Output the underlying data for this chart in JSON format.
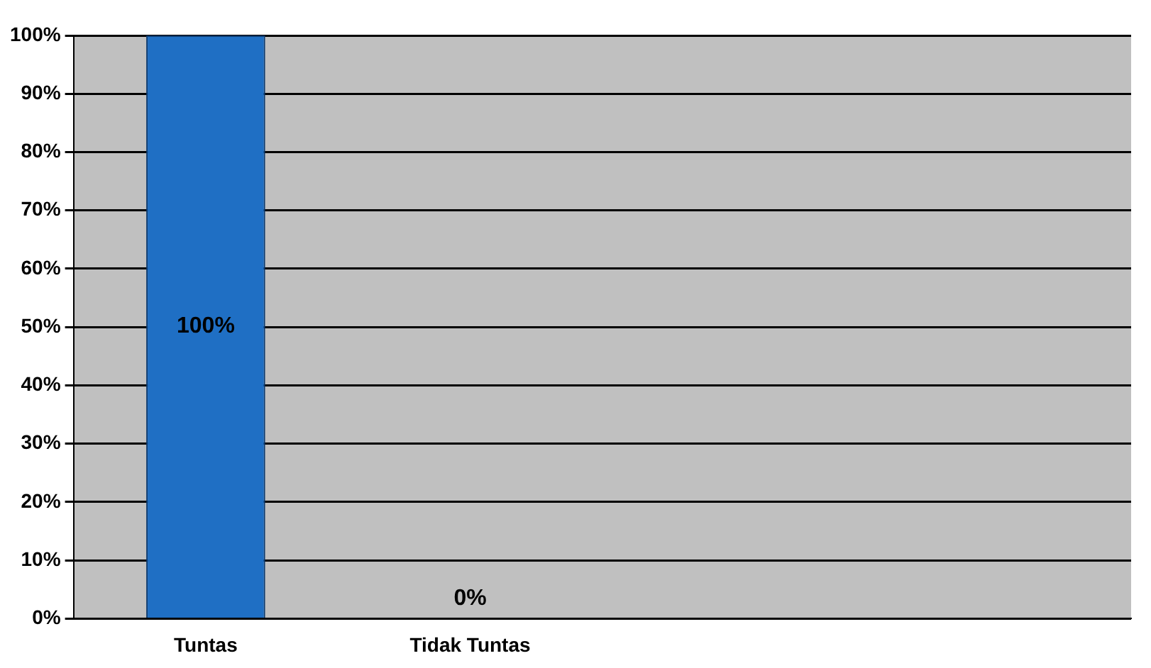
{
  "chart_data": {
    "type": "bar",
    "categories": [
      "Tuntas",
      "Tidak Tuntas",
      null,
      null
    ],
    "values": [
      100,
      0,
      null,
      null
    ],
    "colors": [
      "#1f6fc4",
      "#c00000",
      "#1f6fc4",
      "#1f6fc4"
    ],
    "value_labels": [
      "100%",
      "0%",
      null,
      null
    ],
    "ylim": [
      0,
      100
    ],
    "yticks": [
      {
        "value": 0,
        "label": "0%"
      },
      {
        "value": 10,
        "label": "10%"
      },
      {
        "value": 20,
        "label": "20%"
      },
      {
        "value": 30,
        "label": "30%"
      },
      {
        "value": 40,
        "label": "40%"
      },
      {
        "value": 50,
        "label": "50%"
      },
      {
        "value": 60,
        "label": "60%"
      },
      {
        "value": 70,
        "label": "70%"
      },
      {
        "value": 80,
        "label": "80%"
      },
      {
        "value": 90,
        "label": "90%"
      },
      {
        "value": 100,
        "label": "100%"
      }
    ],
    "grid": "y",
    "legend": false
  }
}
